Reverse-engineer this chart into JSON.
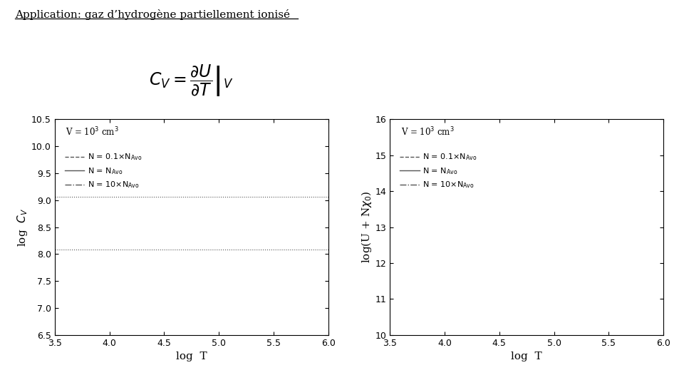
{
  "title": "Application: gaz d’hydrogène partiellement ionisé",
  "bg_color": "#ffffff",
  "left_plot": {
    "xlabel": "log  T",
    "ylabel": "log  $C_V$",
    "xlim": [
      3.5,
      6.0
    ],
    "ylim": [
      6.5,
      10.5
    ],
    "xticks": [
      3.5,
      4.0,
      4.5,
      5.0,
      5.5,
      6.0
    ],
    "yticks": [
      6.5,
      7.0,
      7.5,
      8.0,
      8.5,
      9.0,
      9.5,
      10.0,
      10.5
    ],
    "annotation": "V = 10$^3$ cm$^3$",
    "hline1": 9.07,
    "hline2": 8.08
  },
  "right_plot": {
    "xlabel": "log  T",
    "ylabel": "log(U + N$\\chi_0$)",
    "xlim": [
      3.5,
      6.0
    ],
    "ylim": [
      10.0,
      16.0
    ],
    "xticks": [
      3.5,
      4.0,
      4.5,
      5.0,
      5.5,
      6.0
    ],
    "yticks": [
      10.0,
      11.0,
      12.0,
      13.0,
      14.0,
      15.0,
      16.0
    ],
    "annotation": "V = 10$^3$ cm$^3$"
  },
  "legend_labels": [
    "N = 0.1×N$_{\\rm Avo}$",
    "N = N$_{\\rm Avo}$",
    "N = 10×N$_{\\rm Avo}$"
  ],
  "line_styles": [
    "--",
    "-",
    "-."
  ],
  "line_color": "#555555",
  "line_width": 1.0
}
